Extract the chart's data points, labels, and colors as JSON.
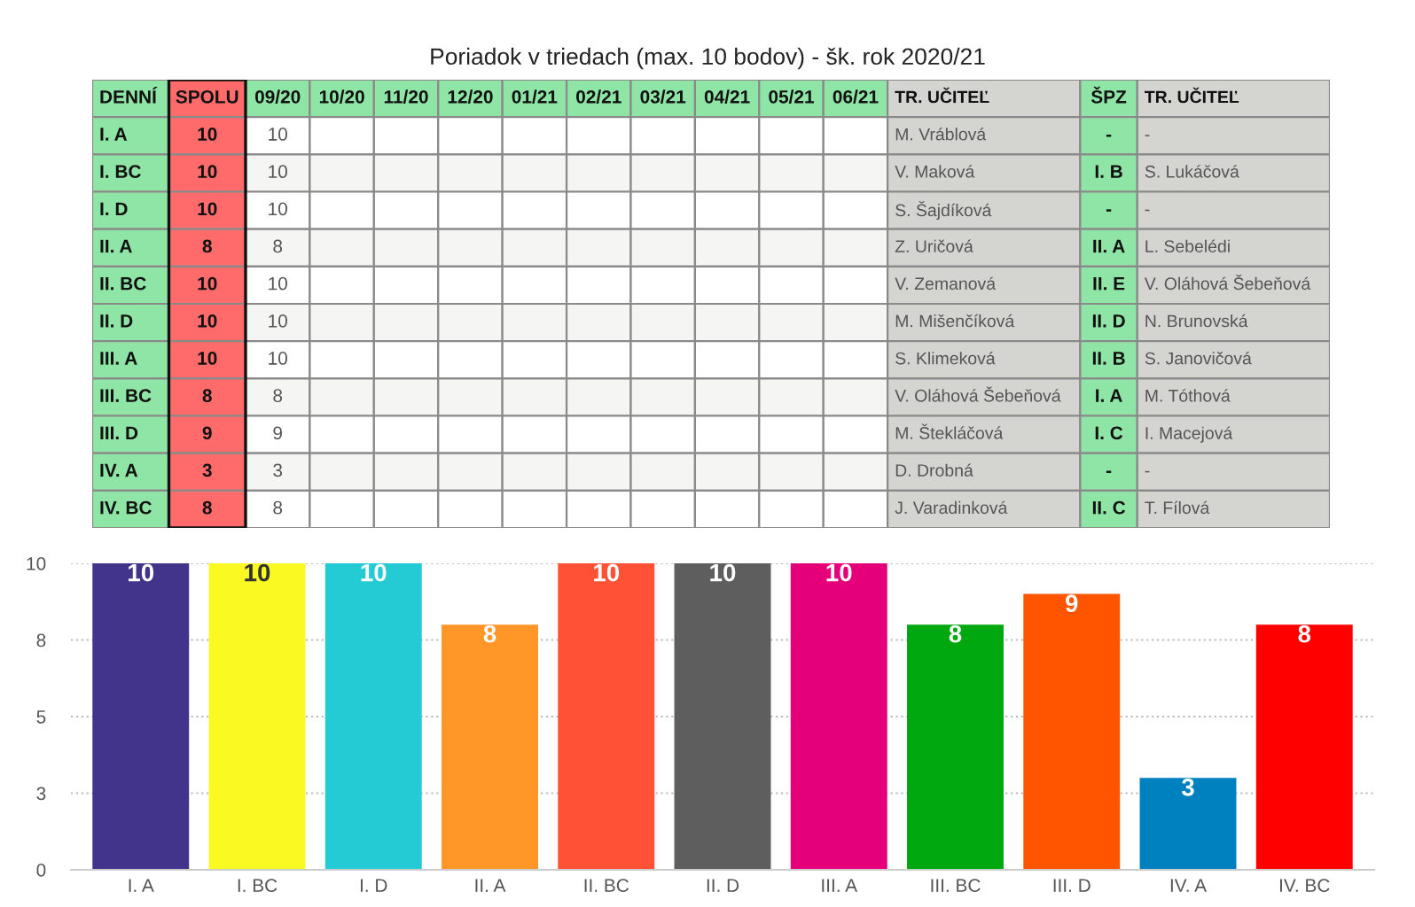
{
  "chart_data": [
    {
      "type": "other",
      "title": "Poriadok v triedach (max. 10 bodov) - šk. rok 2020/21",
      "categories": [
        "DENNÍ",
        "SPOLU",
        "09/20",
        "10/20",
        "11/20",
        "12/20",
        "01/21",
        "02/21",
        "03/21",
        "04/21",
        "05/21",
        "06/21",
        "TR. UČITEĽ",
        "ŠPZ",
        "TR. UČITEĽ"
      ],
      "colors": [
        "#8fe5a6",
        "#ff6b6b",
        "#8fe5a6",
        "#8fe5a6",
        "#8fe5a6",
        "#8fe5a6",
        "#8fe5a6",
        "#8fe5a6",
        "#8fe5a6",
        "#8fe5a6",
        "#8fe5a6",
        "#8fe5a6",
        "#d4d4d0",
        "#8fe5a6",
        "#d4d4d0"
      ],
      "cell_labels": [
        [
          "I. A",
          "10",
          "10",
          null,
          null,
          null,
          null,
          null,
          null,
          null,
          null,
          null,
          "M. Vráblová",
          "-",
          "-"
        ],
        [
          "I. BC",
          "10",
          "10",
          null,
          null,
          null,
          null,
          null,
          null,
          null,
          null,
          null,
          "V. Maková",
          "I. B",
          "S. Lukáčová"
        ],
        [
          "I. D",
          "10",
          "10",
          null,
          null,
          null,
          null,
          null,
          null,
          null,
          null,
          null,
          "S. Šajdíková",
          "-",
          "-"
        ],
        [
          "II. A",
          "8",
          "8",
          null,
          null,
          null,
          null,
          null,
          null,
          null,
          null,
          null,
          "Z. Uričová",
          "II. A",
          "L. Sebelédi"
        ],
        [
          "II. BC",
          "10",
          "10",
          null,
          null,
          null,
          null,
          null,
          null,
          null,
          null,
          null,
          "V. Zemanová",
          "II. E",
          "V. Oláhová Šebeňová"
        ],
        [
          "II. D",
          "10",
          "10",
          null,
          null,
          null,
          null,
          null,
          null,
          null,
          null,
          null,
          "M. Mišenčíková",
          "II. D",
          "N. Brunovská"
        ],
        [
          "III. A",
          "10",
          "10",
          null,
          null,
          null,
          null,
          null,
          null,
          null,
          null,
          null,
          "S. Klimeková",
          "II. B",
          "S. Janovičová"
        ],
        [
          "III. BC",
          "8",
          "8",
          null,
          null,
          null,
          null,
          null,
          null,
          null,
          null,
          null,
          "V. Oláhová Šebeňová",
          "I. A",
          "M. Tóthová"
        ],
        [
          "III. D",
          "9",
          "9",
          null,
          null,
          null,
          null,
          null,
          null,
          null,
          null,
          null,
          "M. Štekláčová",
          "I. C",
          "I. Macejová"
        ],
        [
          "IV. A",
          "3",
          "3",
          null,
          null,
          null,
          null,
          null,
          null,
          null,
          null,
          null,
          "D. Drobná",
          "-",
          "-"
        ],
        [
          "IV. BC",
          "8",
          "8",
          null,
          null,
          null,
          null,
          null,
          null,
          null,
          null,
          null,
          "J. Varadinková",
          "II. C",
          "T. Fílová"
        ]
      ]
    },
    {
      "type": "bar",
      "categories": [
        "I. A",
        "I. BC",
        "I. D",
        "II. A",
        "II. BC",
        "II. D",
        "III. A",
        "III. BC",
        "III. D",
        "IV. A",
        "IV. BC"
      ],
      "values": [
        10,
        10,
        10,
        8,
        10,
        10,
        10,
        8,
        9,
        3,
        8
      ],
      "colors": [
        "#41348a",
        "#fafa22",
        "#24cbd4",
        "#ff9627",
        "#ff5136",
        "#5e5e5e",
        "#e5007a",
        "#00a80f",
        "#ff5500",
        "#0081bf",
        "#ff0000"
      ],
      "ylim": [
        0,
        10
      ],
      "yticks": [
        0,
        {
          "value": 2.5,
          "label": "3"
        },
        5,
        {
          "value": 7.5,
          "label": "8"
        },
        10
      ],
      "grid": "y",
      "data_labels": true
    }
  ]
}
